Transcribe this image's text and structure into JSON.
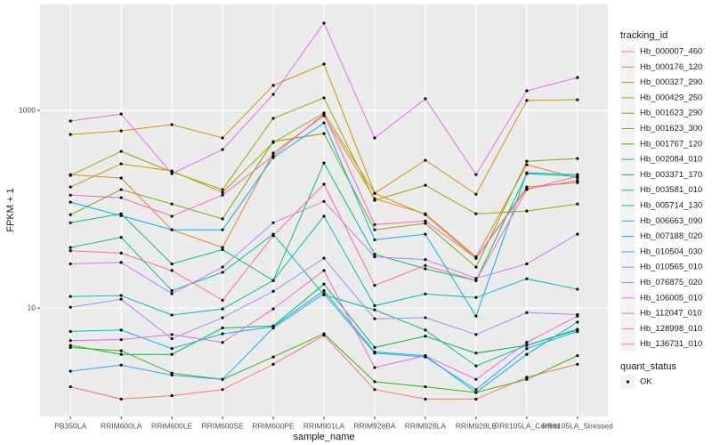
{
  "chart_data": {
    "type": "line",
    "x_label": "sample_name",
    "y_label": "FPKM + 1",
    "log_y": true,
    "grid": true,
    "legend_position": "right",
    "legend_title": "tracking_id",
    "point_color": "#000000",
    "shape_legend": {
      "title": "quant_status",
      "entries": [
        "OK"
      ]
    },
    "categories": [
      "PB350LA",
      "RRIM600LA",
      "RRIM600LE",
      "RRIM600SE",
      "RRIM600PE",
      "RRIM901LA",
      "RRIM928BA",
      "RRIM928LA",
      "RRIM928LE",
      "RRII105LA_Control",
      "RRII105LA_Stressed"
    ],
    "ylim": [
      0.8,
      11800
    ],
    "yticks": [
      10,
      1000
    ],
    "series": [
      {
        "name": "Hb_000007_460",
        "color": "#F8766D",
        "values": [
          1.6,
          1.2,
          1.3,
          1.5,
          2.7,
          5.3,
          1.5,
          1.2,
          1.2,
          2.0,
          2.7
        ]
      },
      {
        "name": "Hb_000176_120",
        "color": "#EA8331",
        "values": [
          224,
          207,
          62,
          41,
          370,
          883,
          128,
          90,
          33,
          282,
          207
        ]
      },
      {
        "name": "Hb_000327_290",
        "color": "#D89000",
        "values": [
          571,
          621,
          718,
          526,
          1790,
          2940,
          145,
          313,
          142,
          1260,
          1280
        ]
      },
      {
        "name": "Hb_000429_250",
        "color": "#C09B00",
        "values": [
          168,
          288,
          244,
          148,
          474,
          940,
          145,
          88,
          32,
          168,
          186
        ]
      },
      {
        "name": "Hb_001623_290",
        "color": "#A3A500",
        "values": [
          220,
          385,
          239,
          158,
          830,
          1340,
          123,
          175,
          90,
          96,
          113
        ]
      },
      {
        "name": "Hb_001623_300",
        "color": "#7CAE00",
        "values": [
          88,
          158,
          113,
          80,
          484,
          583,
          62,
          72,
          26,
          306,
          326
        ]
      },
      {
        "name": "Hb_001767_120",
        "color": "#39B600",
        "values": [
          4.0,
          3.7,
          2.2,
          1.9,
          3.2,
          5.5,
          1.8,
          1.6,
          1.4,
          1.9,
          3.3
        ]
      },
      {
        "name": "Hb_002084_010",
        "color": "#00BB4E",
        "values": [
          4.2,
          3.4,
          3.4,
          6.3,
          6.6,
          17.5,
          4.0,
          5.2,
          3.5,
          4.2,
          6.1
        ]
      },
      {
        "name": "Hb_003371_170",
        "color": "#00BF7D",
        "values": [
          73,
          90,
          28,
          39,
          19,
          294,
          35,
          25,
          19,
          229,
          215
        ]
      },
      {
        "name": "Hb_003581_010",
        "color": "#00C1A3",
        "values": [
          41,
          52,
          15,
          23,
          56,
          13.6,
          9.6,
          6.0,
          2.6,
          4.2,
          6.0
        ]
      },
      {
        "name": "Hb_005714_130",
        "color": "#00BFC4",
        "values": [
          13.1,
          13.4,
          8.5,
          9.8,
          19,
          85,
          10.6,
          13.9,
          12.8,
          19.8,
          15.5
        ]
      },
      {
        "name": "Hb_006663_090",
        "color": "#00BAE0",
        "values": [
          5.8,
          6.0,
          3.9,
          5.5,
          6.5,
          15,
          3.6,
          3.3,
          1.4,
          3.4,
          7.2
        ]
      },
      {
        "name": "Hb_007188_020",
        "color": "#00B0F6",
        "values": [
          118,
          86,
          62,
          62,
          333,
          748,
          49,
          56,
          8.3,
          234,
          224
        ]
      },
      {
        "name": "Hb_010504_030",
        "color": "#35A2FF",
        "values": [
          2.3,
          2.65,
          2.1,
          1.9,
          6.3,
          14,
          3.5,
          3.2,
          1.5,
          3.9,
          5.8
        ]
      },
      {
        "name": "Hb_010565_010",
        "color": "#9590FF",
        "values": [
          10.2,
          12.3,
          4.9,
          8.0,
          14.8,
          32,
          7.8,
          8.0,
          5.4,
          9.0,
          8.6
        ]
      },
      {
        "name": "Hb_076875_020",
        "color": "#C77CFF",
        "values": [
          28,
          29,
          14,
          26,
          73,
          120,
          33,
          31,
          20,
          28,
          56
        ]
      },
      {
        "name": "Hb_106005_010",
        "color": "#E76BF3",
        "values": [
          780,
          920,
          229,
          402,
          1450,
          7640,
          526,
          1310,
          224,
          1580,
          2150
        ]
      },
      {
        "name": "Hb_112047_010",
        "color": "#FA62DB",
        "values": [
          4.7,
          4.8,
          5.4,
          4.5,
          9.8,
          24,
          2.5,
          3.3,
          1.9,
          4.5,
          8.3
        ]
      },
      {
        "name": "Hb_128998_010",
        "color": "#FF62BC",
        "values": [
          139,
          131,
          85,
          139,
          347,
          920,
          70,
          76,
          32,
          161,
          194
        ]
      },
      {
        "name": "Hb_136731_010",
        "color": "#FF6C91",
        "values": [
          38,
          36,
          24,
          12,
          54,
          179,
          17,
          27,
          19,
          158,
          216
        ]
      }
    ]
  }
}
